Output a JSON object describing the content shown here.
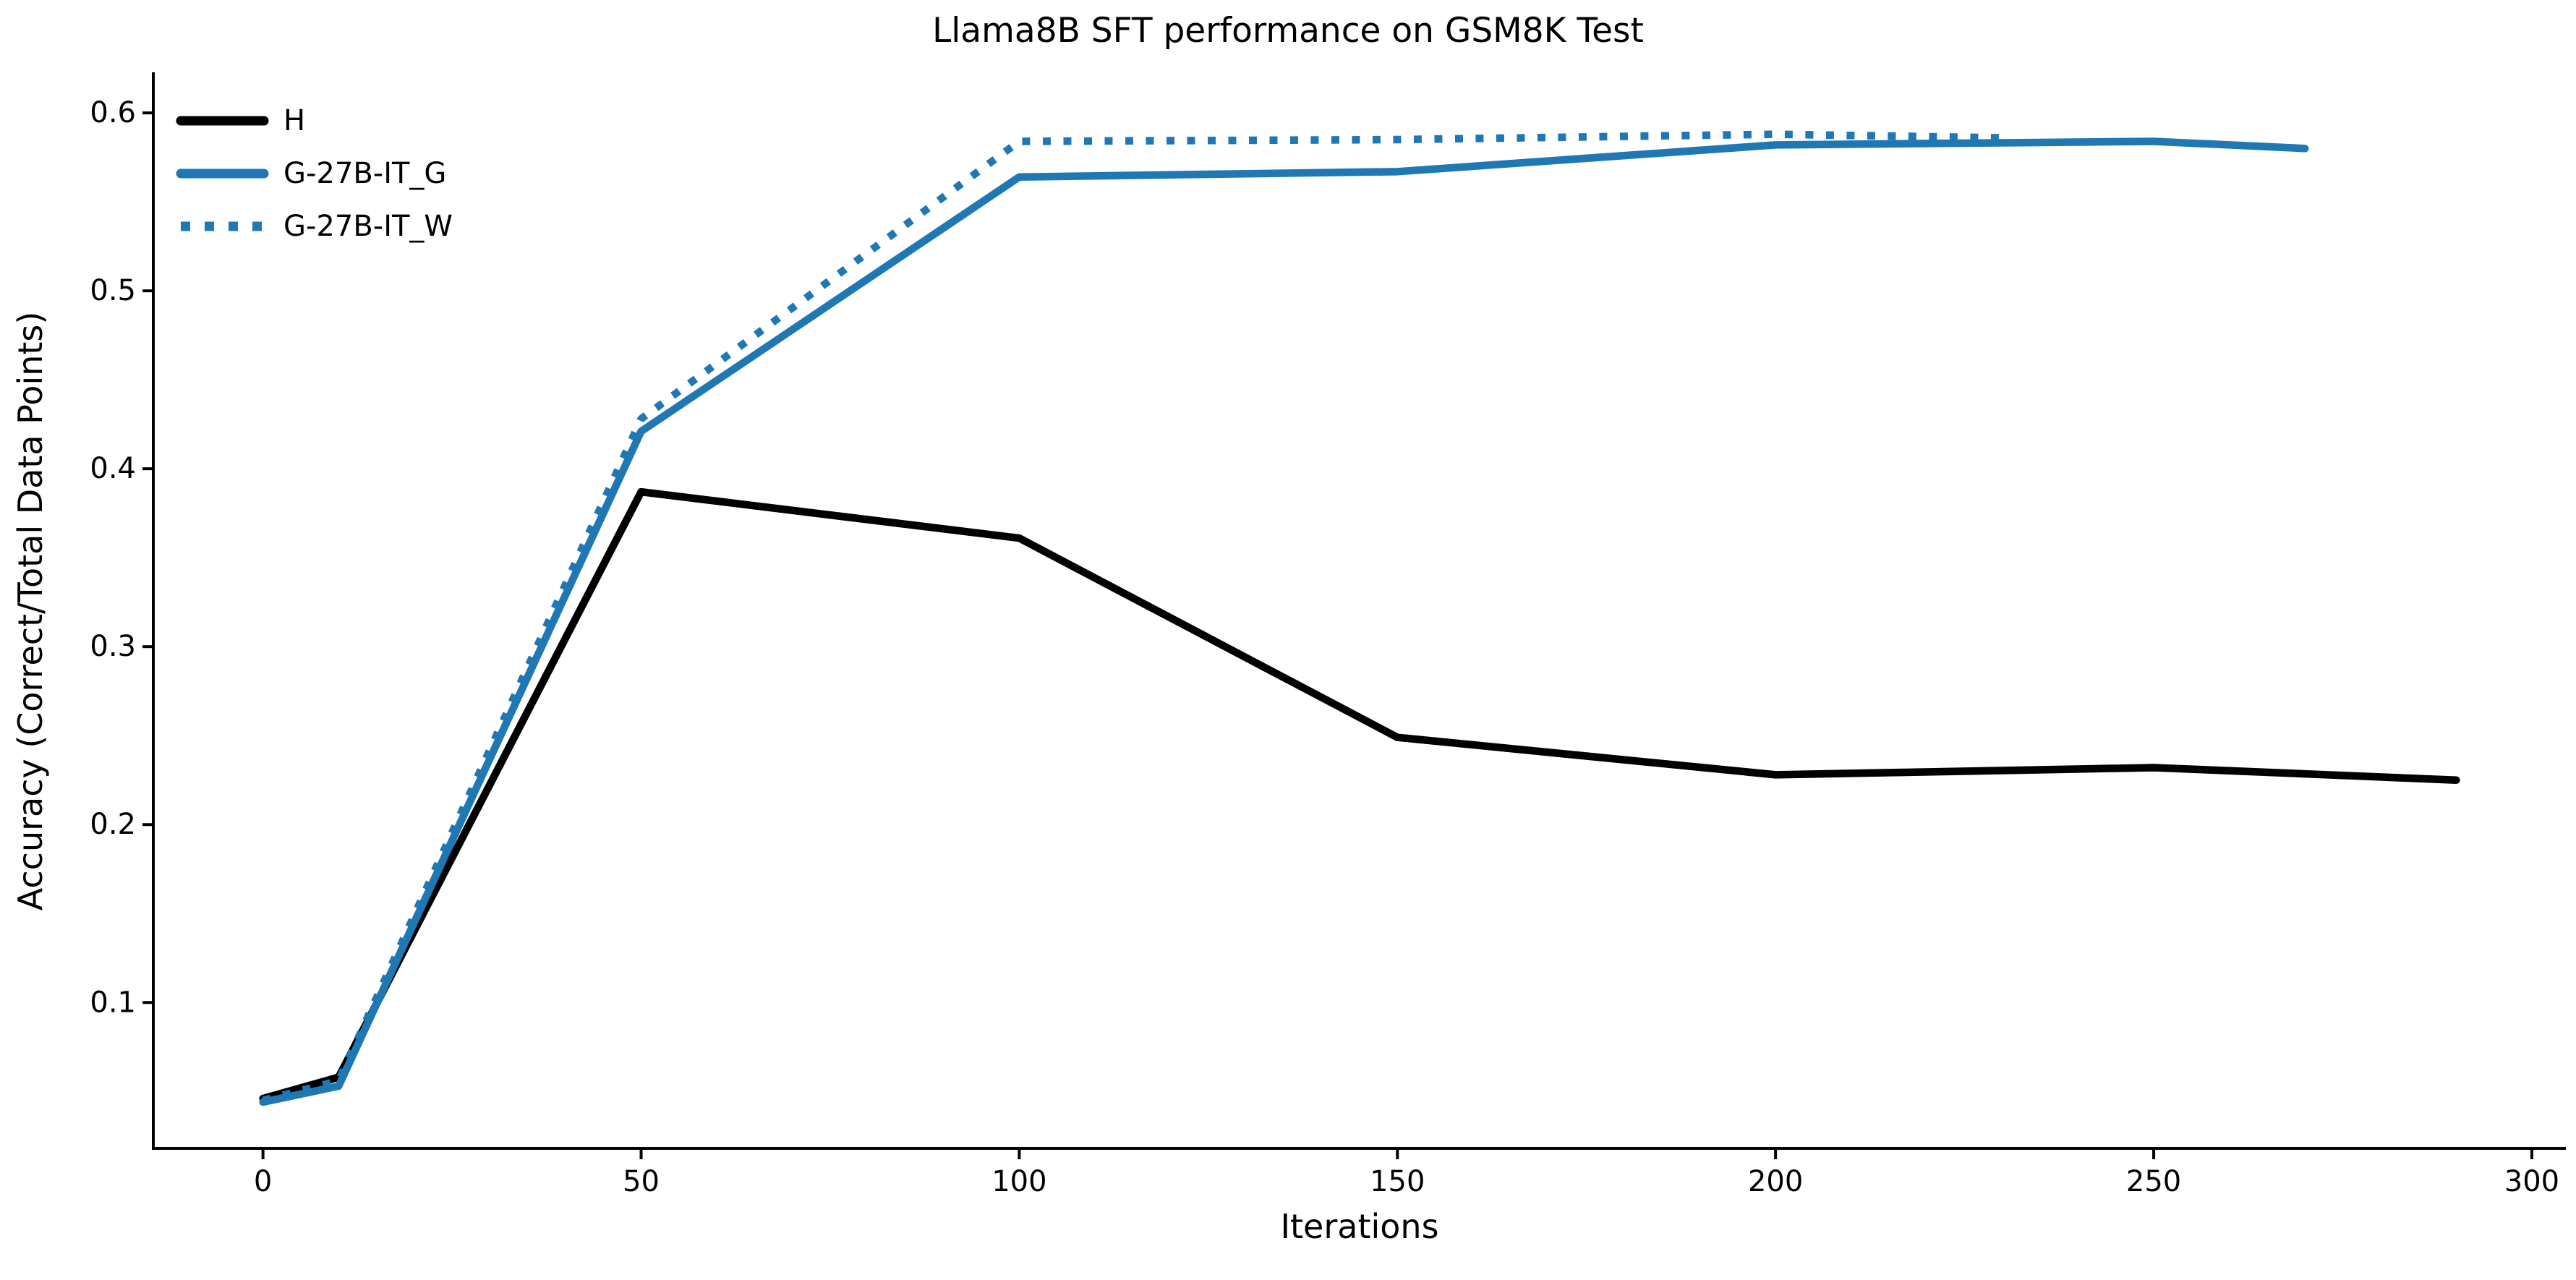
{
  "chart_data": {
    "type": "line",
    "title": "Llama8B SFT performance on GSM8K Test",
    "xlabel": "Iterations",
    "ylabel": "Accuracy (Correct/Total Data Points)",
    "x_ticks": [
      0,
      50,
      100,
      150,
      200,
      250,
      300
    ],
    "y_ticks": [
      0.1,
      0.2,
      0.3,
      0.4,
      0.5,
      0.6
    ],
    "xlim": [
      -14.5,
      304.5
    ],
    "ylim": [
      0.018,
      0.622
    ],
    "grid": false,
    "legend_position": "upper left",
    "colors": {
      "black_series": "#000000",
      "blue_series": "#1f77b4"
    },
    "series": [
      {
        "name": "H",
        "color": "#000000",
        "style": "solid",
        "x": [
          0,
          10,
          50,
          100,
          150,
          200,
          250,
          290
        ],
        "y": [
          0.046,
          0.058,
          0.387,
          0.361,
          0.249,
          0.228,
          0.232,
          0.225
        ]
      },
      {
        "name": "G-27B-IT_G",
        "color": "#1f77b4",
        "style": "solid",
        "x": [
          0,
          10,
          50,
          100,
          150,
          200,
          250,
          270
        ],
        "y": [
          0.044,
          0.053,
          0.421,
          0.564,
          0.567,
          0.582,
          0.584,
          0.58
        ]
      },
      {
        "name": "G-27B-IT_W",
        "color": "#1f77b4",
        "style": "dotted",
        "x": [
          0,
          10,
          50,
          100,
          150,
          200,
          230
        ],
        "y": [
          0.045,
          0.056,
          0.428,
          0.584,
          0.585,
          0.588,
          0.586
        ]
      }
    ]
  }
}
